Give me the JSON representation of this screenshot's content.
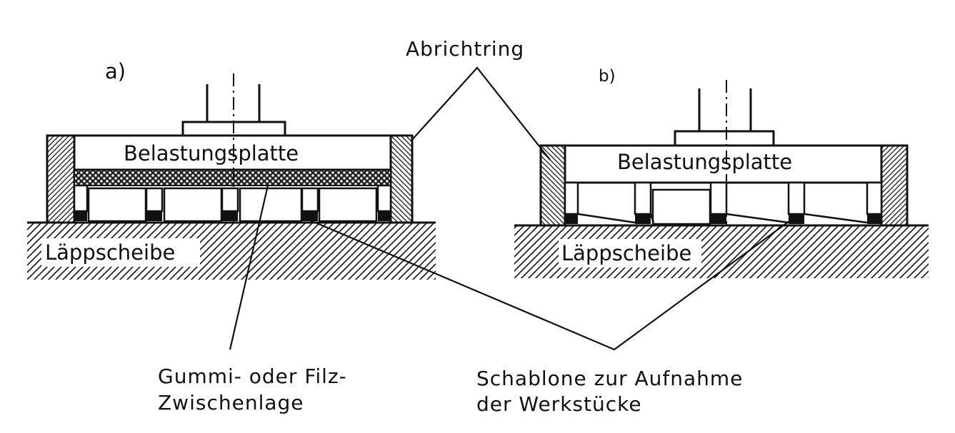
{
  "diagram": {
    "panel_a": {
      "label": "a)",
      "plate_label": "Belastungsplatte",
      "disc_label": "Läppscheibe"
    },
    "panel_b": {
      "label": "b)",
      "plate_label": "Belastungsplatte",
      "disc_label": "Läppscheibe"
    },
    "callouts": {
      "ring": "Abrichtring",
      "interlayer_line1": "Gummi- oder Filz-",
      "interlayer_line2": "Zwischenlage",
      "template_line1": "Schablone zur Aufnahme",
      "template_line2": "der Werkstücke"
    }
  }
}
